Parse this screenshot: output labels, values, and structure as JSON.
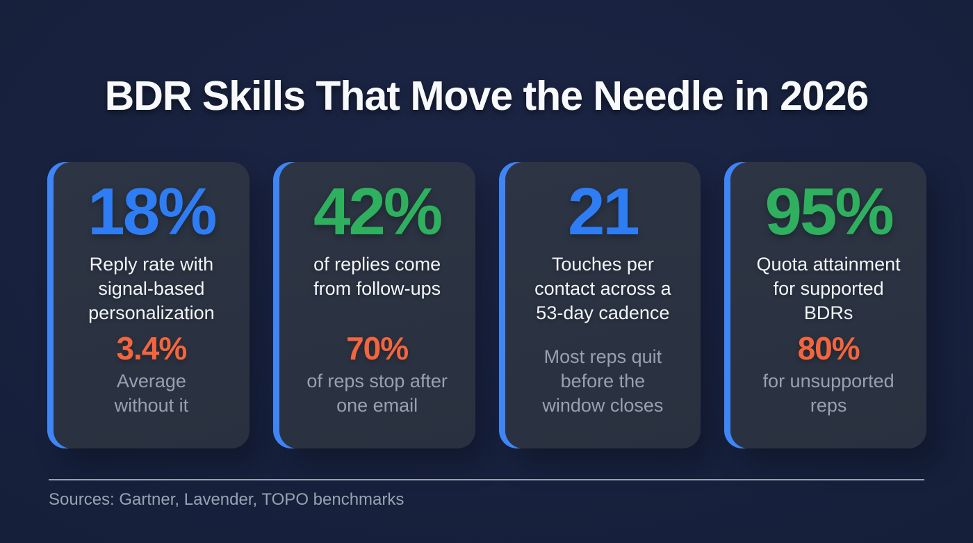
{
  "title": "BDR Skills That Move the Needle in 2026",
  "cards": [
    {
      "value": "18%",
      "value_color": "#2f7df5",
      "description": "Reply rate with\nsignal-based\npersonalization",
      "secondary_value": "3.4%",
      "secondary_description": "Average\nwithout it"
    },
    {
      "value": "42%",
      "value_color": "#2eb05e",
      "description": "of replies come\nfrom follow-ups",
      "secondary_value": "70%",
      "secondary_description": "of reps stop after\none email"
    },
    {
      "value": "21",
      "value_color": "#2f7df5",
      "description": "Touches per\ncontact across a\n53-day cadence",
      "secondary_value": "",
      "secondary_description": "Most reps quit\nbefore the\nwindow closes"
    },
    {
      "value": "95%",
      "value_color": "#2eb05e",
      "description": "Quota attainment\nfor supported\nBDRs",
      "secondary_value": "80%",
      "secondary_description": "for unsupported\nreps"
    }
  ],
  "footer": {
    "sources": "Sources: Gartner, Lavender, TOPO benchmarks"
  },
  "colors": {
    "page_background": "#16203b",
    "card_background": "#2b3342",
    "accent_blue_bar": "#3f85f6",
    "stat_blue": "#2f7df5",
    "stat_green": "#2eb05e",
    "stat_orange": "#f4653e",
    "text_white": "#f2f5f9",
    "text_gray": "#97a1b0",
    "divider_gray": "#a7b1bf"
  },
  "chart_data": {
    "type": "table",
    "title": "BDR Skills That Move the Needle in 2026",
    "columns": [
      "metric",
      "primary_value",
      "secondary_value",
      "secondary_label"
    ],
    "rows": [
      [
        "Reply rate with signal-based personalization",
        "18%",
        "3.4%",
        "Average without it"
      ],
      [
        "of replies come from follow-ups",
        "42%",
        "70%",
        "of reps stop after one email"
      ],
      [
        "Touches per contact across a 53-day cadence",
        "21",
        null,
        "Most reps quit before the window closes"
      ],
      [
        "Quota attainment for supported BDRs",
        "95%",
        "80%",
        "for unsupported reps"
      ]
    ],
    "source": "Sources: Gartner, Lavender, TOPO benchmarks"
  }
}
